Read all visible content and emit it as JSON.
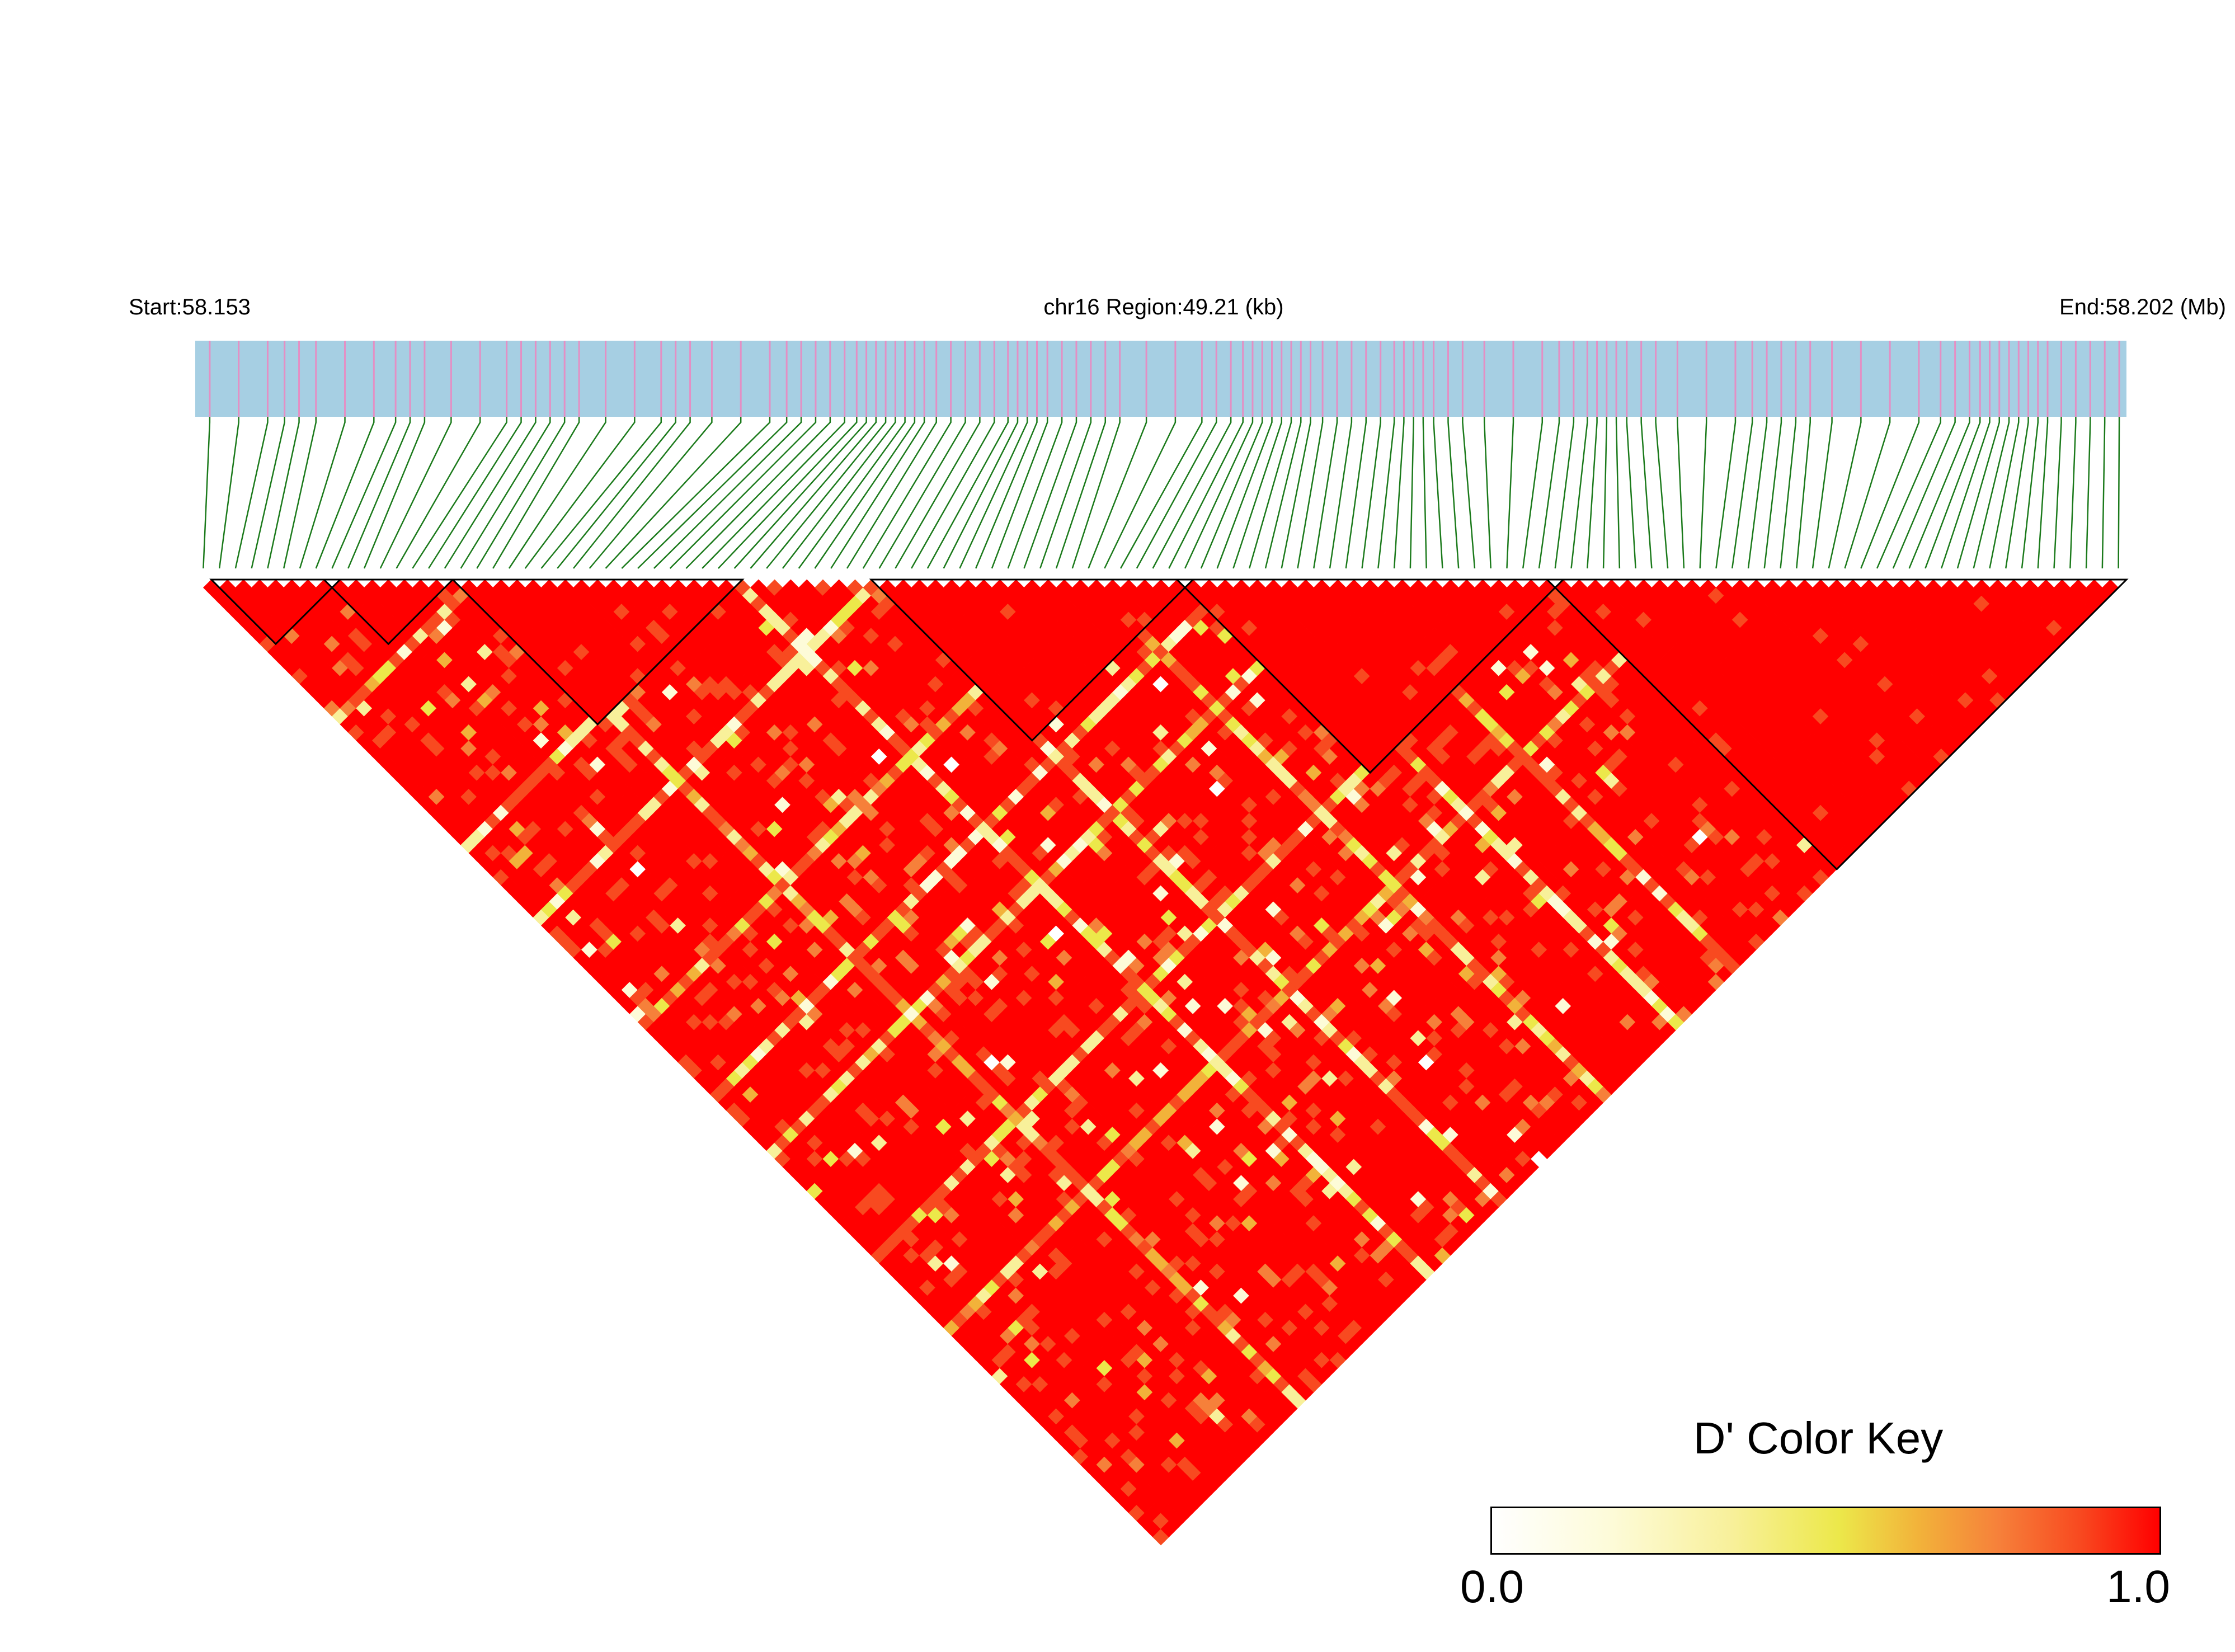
{
  "header": {
    "start_label": "Start:58.153",
    "region_label": "chr16 Region:49.21 (kb)",
    "end_label": "End:58.202 (Mb)"
  },
  "chart_data": {
    "type": "heatmap",
    "subtype": "LD triangle heatmap (pairwise D')",
    "chromosome": "chr16",
    "region_start_mb": 58.153,
    "region_end_mb": 58.202,
    "region_length_kb": 49.21,
    "n_snps": 120,
    "snp_density_profile": [
      1,
      1,
      2,
      1,
      1,
      2,
      1,
      1,
      2,
      2,
      1,
      1,
      2,
      1,
      1,
      2,
      2,
      3,
      3,
      2,
      2,
      3,
      2,
      2,
      1,
      1,
      2,
      3,
      3,
      2,
      2,
      3,
      2,
      1,
      1,
      2,
      3,
      2,
      1,
      1,
      2,
      2,
      1,
      1,
      1,
      2,
      3,
      3,
      2,
      2
    ],
    "color_key": {
      "title": "D' Color Key",
      "min_label": "0.0",
      "max_label": "1.0",
      "min": 0.0,
      "max": 1.0,
      "colors": [
        "#ffffff",
        "#fdfbd8",
        "#f8f09a",
        "#ece84a",
        "#f2b23a",
        "#f6803a",
        "#f84a20",
        "#ff0000"
      ]
    },
    "colors": {
      "gene_track": "#a6cfe3",
      "snp_tick": "#e48fc4",
      "connector": "#1b7a1b",
      "block_outline": "#000000"
    },
    "haplotype_blocks": [
      {
        "first_snp": 1,
        "last_snp": 8
      },
      {
        "first_snp": 8,
        "last_snp": 15
      },
      {
        "first_snp": 16,
        "last_snp": 33
      },
      {
        "first_snp": 42,
        "last_snp": 61
      },
      {
        "first_snp": 61,
        "last_snp": 84
      },
      {
        "first_snp": 84,
        "last_snp": 119
      }
    ],
    "low_dprime_bands": [
      {
        "snp": 17,
        "value": 0.5
      },
      {
        "snp": 33,
        "value": 0.3
      },
      {
        "snp": 42,
        "value": 0.3
      },
      {
        "snp": 55,
        "value": 0.5
      },
      {
        "snp": 64,
        "value": 0.3
      },
      {
        "snp": 71,
        "value": 0.4
      },
      {
        "snp": 84,
        "value": 0.35
      },
      {
        "snp": 93,
        "value": 0.6
      }
    ]
  }
}
